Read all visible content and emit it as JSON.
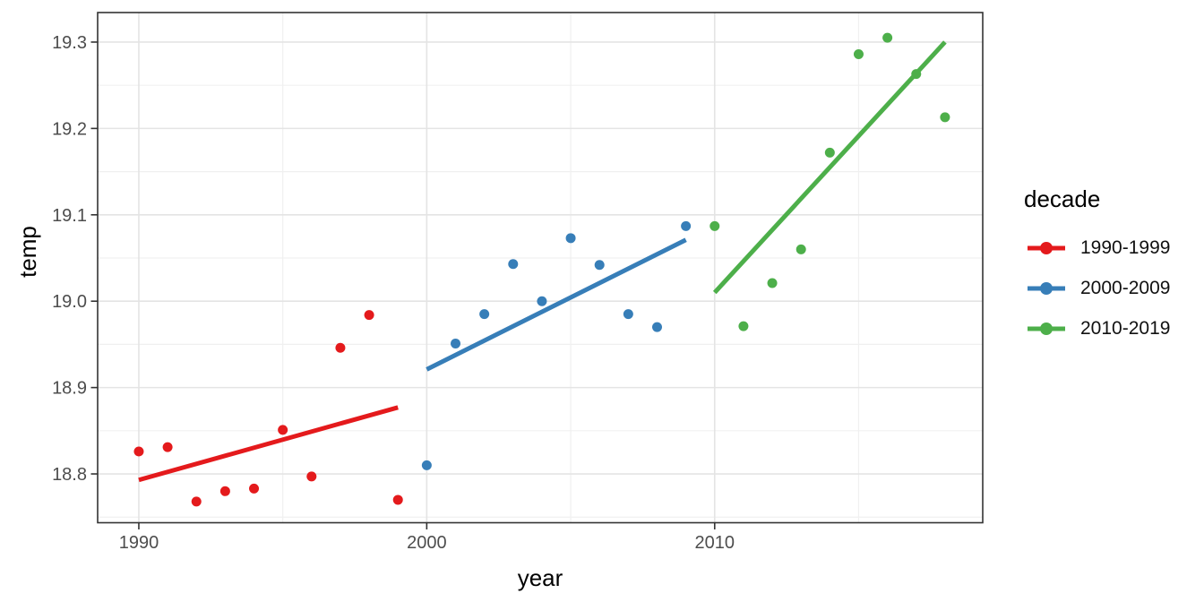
{
  "chart_data": {
    "type": "scatter",
    "title": "",
    "xlabel": "year",
    "ylabel": "temp",
    "grid": true,
    "xlim": [
      1988.57,
      2019.31
    ],
    "ylim": [
      18.7435,
      19.3342
    ],
    "x_ticks": [
      1990,
      2000,
      2010
    ],
    "x_tick_labels": [
      "1990",
      "2000",
      "2010"
    ],
    "x_minor_ticks": [
      1995,
      2005,
      2015
    ],
    "y_ticks": [
      18.8,
      18.9,
      19.0,
      19.1,
      19.2,
      19.3
    ],
    "y_tick_labels": [
      "18.8",
      "18.9",
      "19.0",
      "19.1",
      "19.2",
      "19.3"
    ],
    "y_minor_ticks": [
      18.75,
      18.85,
      18.95,
      19.05,
      19.15,
      19.25
    ],
    "legend": {
      "title": "decade",
      "position": "right"
    },
    "series": [
      {
        "name": "1990-1999",
        "color": "#E41A1C",
        "x": [
          1990,
          1991,
          1992,
          1993,
          1994,
          1995,
          1996,
          1997,
          1998,
          1999
        ],
        "y": [
          18.826,
          18.831,
          18.768,
          18.78,
          18.783,
          18.851,
          18.797,
          18.946,
          18.984,
          18.77
        ],
        "trend": {
          "x1": 1990,
          "y1": 18.793,
          "x2": 1999,
          "y2": 18.877
        }
      },
      {
        "name": "2000-2009",
        "color": "#377EB8",
        "x": [
          2000,
          2001,
          2002,
          2003,
          2004,
          2005,
          2006,
          2007,
          2008,
          2009
        ],
        "y": [
          18.81,
          18.951,
          18.985,
          19.043,
          19.0,
          19.073,
          19.042,
          18.985,
          18.97,
          19.087
        ],
        "trend": {
          "x1": 2000,
          "y1": 18.921,
          "x2": 2009,
          "y2": 19.071
        }
      },
      {
        "name": "2010-2019",
        "color": "#4DAF4A",
        "x": [
          2010,
          2011,
          2012,
          2013,
          2014,
          2015,
          2016,
          2017,
          2018
        ],
        "y": [
          19.087,
          18.971,
          19.021,
          19.06,
          19.172,
          19.286,
          19.305,
          19.263,
          19.213
        ],
        "trend": {
          "x1": 2010,
          "y1": 19.01,
          "x2": 2018,
          "y2": 19.3
        }
      }
    ],
    "colors": {
      "background": "#FFFFFF",
      "panel_background": "#FFFFFF",
      "panel_border": "#333333",
      "grid_major": "#E4E4E4",
      "grid_minor": "#F0F0F0",
      "tick_mark": "#333333",
      "tick_label": "#4D4D4D",
      "axis_title": "#000000",
      "legend_text": "#111111"
    }
  }
}
